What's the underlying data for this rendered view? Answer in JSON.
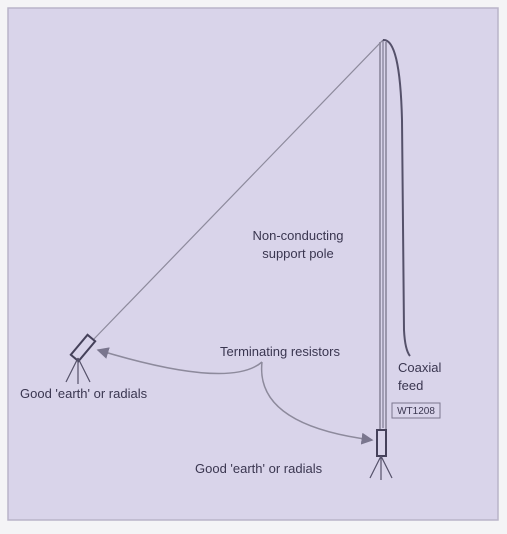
{
  "labels": {
    "pole": [
      "Non-conducting",
      "support pole"
    ],
    "resistors": "Terminating resistors",
    "feed": [
      "Coaxial",
      "feed"
    ],
    "code": "WT1208",
    "earth_left": "Good 'earth' or radials",
    "earth_bottom": "Good 'earth' or radials"
  }
}
